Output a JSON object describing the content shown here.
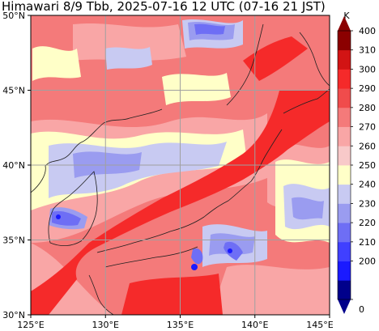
{
  "title": "Himawari 8/9 Tbb, 2025-07-16 12 UTC (07-16 21 JST)",
  "lat_ticks": [
    "50°N",
    "45°N",
    "40°N",
    "35°N",
    "30°N"
  ],
  "lon_ticks": [
    "125°E",
    "130°E",
    "135°E",
    "140°E",
    "145°E"
  ],
  "colorbar": {
    "unit": "K",
    "labels": [
      "400",
      "310",
      "300",
      "290",
      "280",
      "270",
      "260",
      "250",
      "240",
      "230",
      "220",
      "210",
      "200",
      "0"
    ],
    "colors": [
      "#00008b",
      "#1a1aff",
      "#4040ff",
      "#6e6ef5",
      "#9a9cf0",
      "#c8caf2",
      "#ffffc8",
      "#f8c9c9",
      "#f9a6a6",
      "#f47a7a",
      "#f04c4c",
      "#f52a2a",
      "#d21414",
      "#8b0000"
    ]
  },
  "map_data": {
    "lon_range": [
      125,
      145
    ],
    "lat_range": [
      30,
      50
    ],
    "grid": true,
    "field": "brightness temperature"
  }
}
